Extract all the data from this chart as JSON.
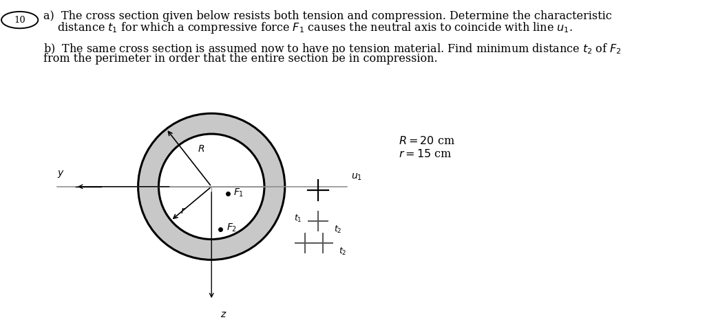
{
  "fig_width": 10.24,
  "fig_height": 4.69,
  "dpi": 100,
  "bg_color": "#ffffff",
  "gray_fill": "#c8c8c8",
  "white_fill": "#ffffff",
  "black": "#000000",
  "gray_line": "#888888",
  "circle_lw": 2.2,
  "text_a_line1": "a)  The cross section given below resists both tension and compression. Determine the characteristic",
  "text_a_line2": "    distance $t_1$ for which a compressive force $F_1$ causes the neutral axis to coincide with line $u_1$.",
  "text_b_line1": "b)  The same cross section is assumed now to have no tension material. Find minimum distance $t_2$ of $F_2$",
  "text_b_line2": "from the perimeter in order that the entire section be in compression.",
  "R_info": "$R = 20$ cm",
  "r_info": "$r = 15$ cm",
  "font_size": 11.5,
  "font_size_small": 10,
  "font_size_tiny": 9
}
